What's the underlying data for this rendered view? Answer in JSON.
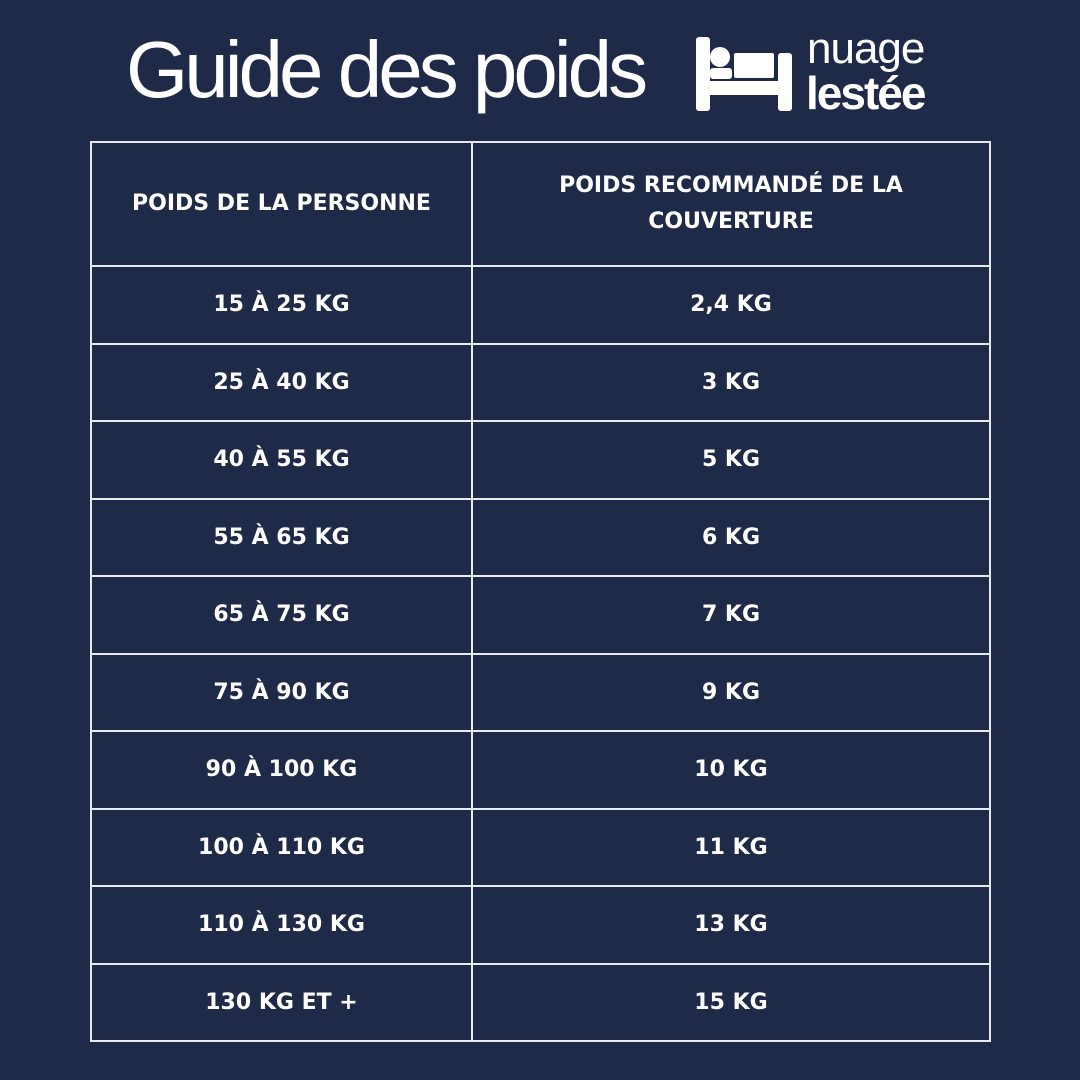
{
  "title": "Guide des poids",
  "logo": {
    "line1": "nuage",
    "line2": "lestée",
    "icon": "bed-icon"
  },
  "colors": {
    "background": "#1e2a47",
    "text": "#ffffff",
    "border": "#e8eaf0"
  },
  "table": {
    "headers": [
      "POIDS DE LA PERSONNE",
      "POIDS RECOMMANDÉ DE LA COUVERTURE"
    ],
    "rows": [
      [
        "15 À 25 KG",
        "2,4 KG"
      ],
      [
        "25 À 40 KG",
        "3 KG"
      ],
      [
        "40 À 55 KG",
        "5 KG"
      ],
      [
        "55 À 65 KG",
        "6 KG"
      ],
      [
        "65 À 75 KG",
        "7 KG"
      ],
      [
        "75 À 90 KG",
        "9 KG"
      ],
      [
        "90 À 100 KG",
        "10 KG"
      ],
      [
        "100 À 110 KG",
        "11 KG"
      ],
      [
        "110 À 130 KG",
        "13 KG"
      ],
      [
        "130 KG ET +",
        "15 KG"
      ]
    ]
  }
}
